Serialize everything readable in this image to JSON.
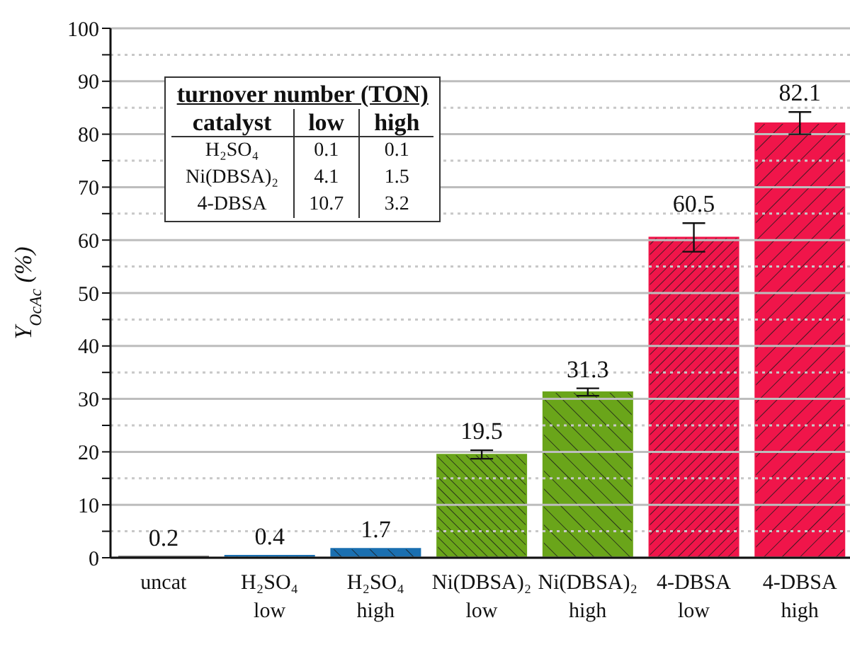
{
  "chart_data": {
    "type": "bar",
    "ylabel": "Y$_{OcAc}$ (%)",
    "categories": [
      "uncat",
      "H₂SO₄\nlow",
      "H₂SO₄\nhigh",
      "Ni(DBSA)₂\nlow",
      "Ni(DBSA)₂\nhigh",
      "4-DBSA\nlow",
      "4-DBSA\nhigh"
    ],
    "values": [
      0.2,
      0.4,
      1.7,
      19.5,
      31.3,
      60.5,
      82.1
    ],
    "errors": [
      null,
      null,
      null,
      0.8,
      0.7,
      2.7,
      2.1
    ],
    "colors": [
      "#111111",
      "#1a6fb0",
      "#1a6fb0",
      "#6aa51a",
      "#6aa51a",
      "#f0154a",
      "#f0154a"
    ],
    "data_labels": true,
    "ylim": [
      0,
      100
    ],
    "yticks": [
      0,
      {
        "value": 5,
        "label": null
      },
      10,
      {
        "value": 15,
        "label": null
      },
      20,
      {
        "value": 25,
        "label": null
      },
      30,
      {
        "value": 35,
        "label": null
      },
      40,
      {
        "value": 45,
        "label": null
      },
      50,
      {
        "value": 55,
        "label": null
      },
      60,
      {
        "value": 65,
        "label": null
      },
      70,
      {
        "value": 75,
        "label": null
      },
      80,
      {
        "value": 85,
        "label": null
      },
      90,
      {
        "value": 95,
        "label": null
      },
      100
    ],
    "grid": "y",
    "annotations": [
      "turnover number (TON)",
      "catalyst",
      "low",
      "high",
      "H₂SO₄",
      "0.1",
      "0.1",
      "Ni(DBSA)₂",
      "4.1",
      "1.5",
      "4-DBSA",
      "10.7",
      "3.2"
    ]
  }
}
